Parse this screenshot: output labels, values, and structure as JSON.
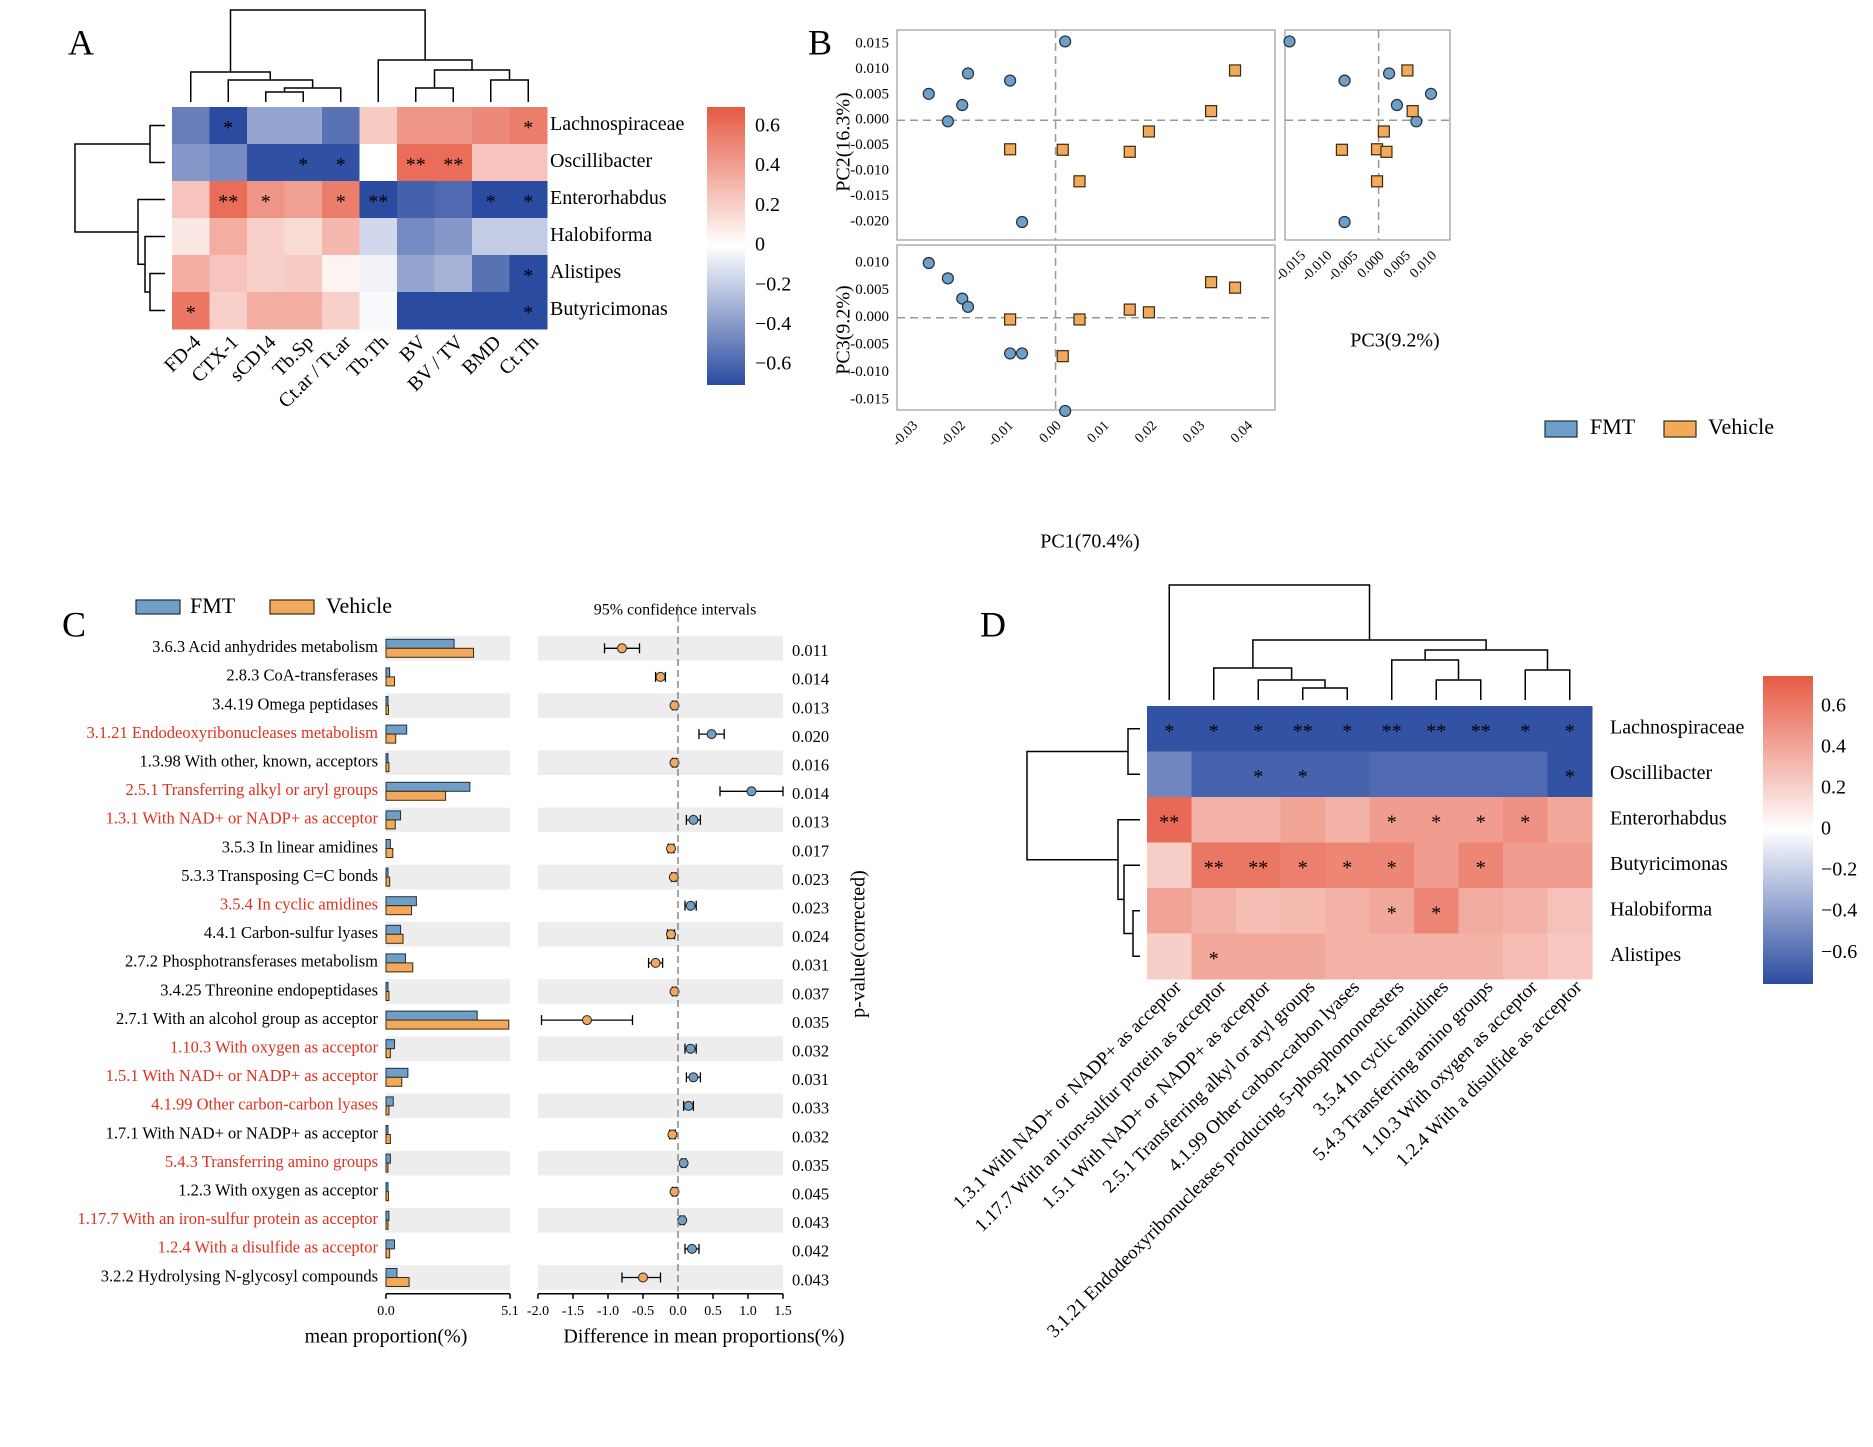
{
  "colors": {
    "fmt": "#6f9fc6",
    "vehicle": "#f2a95c",
    "highlight": "#e0301e",
    "cmap_low": "#2a4ba0",
    "cmap_mid": "#ffffff",
    "cmap_high": "#e65a43"
  },
  "chart_data": [
    {
      "panel": "A",
      "type": "heatmap",
      "label": "A",
      "columns": [
        "FD-4",
        "CTX-1",
        "sCD14",
        "Tb.Sp",
        "Ct.ar / Tt.ar",
        "Tb.Th",
        "BV",
        "BV / TV",
        "BMD",
        "Ct.Th"
      ],
      "rows": [
        "Lachnospiraceae",
        "Oscillibacter",
        "Enterorhabdus",
        "Halobiforma",
        "Alistipes",
        "Butyricimonas"
      ],
      "values": [
        [
          -0.5,
          -0.72,
          -0.35,
          -0.35,
          -0.55,
          0.22,
          0.45,
          0.45,
          0.5,
          0.55
        ],
        [
          -0.4,
          -0.45,
          -0.68,
          -0.68,
          -0.68,
          0.0,
          0.62,
          0.62,
          0.25,
          0.25
        ],
        [
          0.25,
          0.62,
          0.45,
          0.4,
          0.55,
          -0.72,
          -0.62,
          -0.58,
          -0.72,
          -0.72
        ],
        [
          0.1,
          0.35,
          0.2,
          0.15,
          0.3,
          -0.15,
          -0.45,
          -0.4,
          -0.2,
          -0.2
        ],
        [
          0.35,
          0.25,
          0.2,
          0.22,
          0.05,
          -0.05,
          -0.35,
          -0.3,
          -0.55,
          -0.72
        ],
        [
          0.58,
          0.2,
          0.35,
          0.35,
          0.2,
          -0.02,
          -0.7,
          -0.7,
          -0.7,
          -0.72
        ]
      ],
      "stars": [
        [
          "",
          "*",
          "",
          "",
          "",
          "",
          "",
          "",
          "",
          "*"
        ],
        [
          "",
          "",
          "",
          "*",
          "*",
          "",
          "**",
          "**",
          "",
          ""
        ],
        [
          "",
          "**",
          "*",
          "",
          "*",
          "**",
          "",
          "",
          "*",
          "*"
        ],
        [
          "",
          "",
          "",
          "",
          "",
          "",
          "",
          "",
          "",
          ""
        ],
        [
          "",
          "",
          "",
          "",
          "",
          "",
          "",
          "",
          "",
          "*"
        ],
        [
          "*",
          "",
          "",
          "",
          "",
          "",
          "",
          "",
          "",
          "*"
        ]
      ],
      "colorbar": {
        "range": [
          -0.7,
          0.7
        ],
        "ticks": [
          "0.6",
          "0.4",
          "0.2",
          "0",
          "−0.2",
          "−0.4",
          "−0.6"
        ],
        "tick_values": [
          0.6,
          0.4,
          0.2,
          0,
          -0.2,
          -0.4,
          -0.6
        ]
      }
    },
    {
      "panel": "B",
      "type": "scatter",
      "label": "B",
      "legend": [
        "FMT",
        "Vehicle"
      ],
      "xlabel_main": "PC1(70.4%)",
      "ylabel_top": "PC2(16.3%)",
      "ylabel_bottom": "PC3(9.2%)",
      "xlabel_side": "PC3(9.2%)",
      "pc1_ticks": [
        "-0.03",
        "-0.02",
        "-0.01",
        "0.00",
        "0.01",
        "0.02",
        "0.03",
        "0.04"
      ],
      "pc1_tick_values": [
        -0.03,
        -0.02,
        -0.01,
        0,
        0.01,
        0.02,
        0.03,
        0.04
      ],
      "pc2_ticks": [
        "0.015",
        "0.010",
        "0.005",
        "0.000",
        "-0.005",
        "-0.010",
        "-0.015",
        "-0.020"
      ],
      "pc2_tick_values": [
        0.015,
        0.01,
        0.005,
        0,
        -0.005,
        -0.01,
        -0.015,
        -0.02
      ],
      "pc3_ticks": [
        "0.010",
        "0.005",
        "0.000",
        "-0.005",
        "-0.010",
        "-0.015"
      ],
      "pc3_tick_values": [
        0.01,
        0.005,
        0,
        -0.005,
        -0.01,
        -0.015
      ],
      "side_ticks": [
        "-0.015",
        "-0.010",
        "-0.005",
        "0.000",
        "0.005",
        "0.010"
      ],
      "side_tick_values": [
        -0.015,
        -0.01,
        -0.005,
        0,
        0.005,
        0.01
      ],
      "FMT": [
        {
          "pc1": -0.0265,
          "pc2": 0.0052,
          "pc3": 0.01
        },
        {
          "pc1": -0.0225,
          "pc2": -0.0002,
          "pc3": 0.0072
        },
        {
          "pc1": -0.0195,
          "pc2": 0.003,
          "pc3": 0.0035
        },
        {
          "pc1": -0.0183,
          "pc2": 0.0092,
          "pc3": 0.002
        },
        {
          "pc1": -0.0095,
          "pc2": 0.0078,
          "pc3": -0.0065
        },
        {
          "pc1": -0.007,
          "pc2": -0.02,
          "pc3": -0.0065
        },
        {
          "pc1": 0.002,
          "pc2": 0.0155,
          "pc3": -0.017
        }
      ],
      "Vehicle": [
        {
          "pc1": -0.0095,
          "pc2": -0.0057,
          "pc3": -0.0003
        },
        {
          "pc1": 0.0015,
          "pc2": -0.0058,
          "pc3": -0.007
        },
        {
          "pc1": 0.005,
          "pc2": -0.012,
          "pc3": -0.0003
        },
        {
          "pc1": 0.0155,
          "pc2": -0.0062,
          "pc3": 0.0015
        },
        {
          "pc1": 0.0195,
          "pc2": -0.0022,
          "pc3": 0.001
        },
        {
          "pc1": 0.0325,
          "pc2": 0.0018,
          "pc3": 0.0065
        },
        {
          "pc1": 0.0375,
          "pc2": 0.0098,
          "pc3": 0.0055
        }
      ]
    },
    {
      "panel": "C",
      "type": "bar",
      "label": "C",
      "legend": [
        "FMT",
        "Vehicle"
      ],
      "ci_title": "95% confidence intervals",
      "xlabel_left": "mean proportion(%)",
      "xlabel_right": "Difference in mean proportions(%)",
      "ylabel_right": "p-value(corrected)",
      "left_ticks": [
        "0.0",
        "5.1"
      ],
      "left_tick_values": [
        0,
        5.1
      ],
      "right_ticks": [
        "-2.0",
        "-1.5",
        "-1.0",
        "-0.5",
        "0.0",
        "0.5",
        "1.0",
        "1.5"
      ],
      "right_tick_values": [
        -2.0,
        -1.5,
        -1.0,
        -0.5,
        0.0,
        0.5,
        1.0,
        1.5
      ],
      "rows": [
        {
          "label": "3.6.3 Acid anhydrides metabolism",
          "red": false,
          "fmt": 2.8,
          "vehicle": 3.6,
          "diff": -0.8,
          "lo": -1.05,
          "hi": -0.55,
          "p": "0.011"
        },
        {
          "label": "2.8.3 CoA-transferases",
          "red": false,
          "fmt": 0.15,
          "vehicle": 0.35,
          "diff": -0.25,
          "lo": -0.32,
          "hi": -0.18,
          "p": "0.014"
        },
        {
          "label": "3.4.19 Omega peptidases",
          "red": false,
          "fmt": 0.05,
          "vehicle": 0.1,
          "diff": -0.05,
          "lo": -0.08,
          "hi": -0.02,
          "p": "0.013"
        },
        {
          "label": "3.1.21 Endodeoxyribonucleases metabolism",
          "red": true,
          "fmt": 0.85,
          "vehicle": 0.4,
          "diff": 0.48,
          "lo": 0.3,
          "hi": 0.66,
          "p": "0.020"
        },
        {
          "label": "1.3.98 With other, known, acceptors",
          "red": false,
          "fmt": 0.05,
          "vehicle": 0.12,
          "diff": -0.05,
          "lo": -0.08,
          "hi": -0.02,
          "p": "0.016"
        },
        {
          "label": "2.5.1 Transferring alkyl or aryl groups",
          "red": true,
          "fmt": 3.45,
          "vehicle": 2.45,
          "diff": 1.05,
          "lo": 0.6,
          "hi": 1.5,
          "p": "0.014"
        },
        {
          "label": "1.3.1 With NAD+ or NADP+ as acceptor",
          "red": true,
          "fmt": 0.6,
          "vehicle": 0.38,
          "diff": 0.22,
          "lo": 0.12,
          "hi": 0.32,
          "p": "0.013"
        },
        {
          "label": "3.5.3 In linear amidines",
          "red": false,
          "fmt": 0.18,
          "vehicle": 0.28,
          "diff": -0.1,
          "lo": -0.14,
          "hi": -0.06,
          "p": "0.017"
        },
        {
          "label": "5.3.3 Transposing C=C bonds",
          "red": false,
          "fmt": 0.08,
          "vehicle": 0.15,
          "diff": -0.06,
          "lo": -0.09,
          "hi": -0.03,
          "p": "0.023"
        },
        {
          "label": "3.5.4 In cyclic amidines",
          "red": true,
          "fmt": 1.25,
          "vehicle": 1.05,
          "diff": 0.18,
          "lo": 0.1,
          "hi": 0.26,
          "p": "0.023"
        },
        {
          "label": "4.4.1 Carbon-sulfur lyases",
          "red": false,
          "fmt": 0.6,
          "vehicle": 0.7,
          "diff": -0.1,
          "lo": -0.15,
          "hi": -0.05,
          "p": "0.024"
        },
        {
          "label": "2.7.2 Phosphotransferases metabolism",
          "red": false,
          "fmt": 0.8,
          "vehicle": 1.1,
          "diff": -0.32,
          "lo": -0.42,
          "hi": -0.22,
          "p": "0.031"
        },
        {
          "label": "3.4.25 Threonine endopeptidases",
          "red": false,
          "fmt": 0.05,
          "vehicle": 0.12,
          "diff": -0.05,
          "lo": -0.08,
          "hi": -0.02,
          "p": "0.037"
        },
        {
          "label": "2.7.1 With an alcohol group as acceptor",
          "red": false,
          "fmt": 3.75,
          "vehicle": 5.05,
          "diff": -1.3,
          "lo": -1.95,
          "hi": -0.65,
          "p": "0.035"
        },
        {
          "label": "1.10.3 With oxygen as acceptor",
          "red": true,
          "fmt": 0.35,
          "vehicle": 0.18,
          "diff": 0.18,
          "lo": 0.1,
          "hi": 0.26,
          "p": "0.032"
        },
        {
          "label": "1.5.1 With NAD+ or NADP+ as acceptor",
          "red": true,
          "fmt": 0.9,
          "vehicle": 0.65,
          "diff": 0.22,
          "lo": 0.12,
          "hi": 0.32,
          "p": "0.031"
        },
        {
          "label": "4.1.99 Other carbon-carbon lyases",
          "red": true,
          "fmt": 0.3,
          "vehicle": 0.12,
          "diff": 0.15,
          "lo": 0.08,
          "hi": 0.22,
          "p": "0.033"
        },
        {
          "label": "1.7.1 With NAD+ or NADP+ as acceptor",
          "red": false,
          "fmt": 0.08,
          "vehicle": 0.18,
          "diff": -0.08,
          "lo": -0.12,
          "hi": -0.04,
          "p": "0.032"
        },
        {
          "label": "5.4.3 Transferring amino groups",
          "red": true,
          "fmt": 0.18,
          "vehicle": 0.08,
          "diff": 0.08,
          "lo": 0.05,
          "hi": 0.11,
          "p": "0.035"
        },
        {
          "label": "1.2.3 With oxygen as acceptor",
          "red": false,
          "fmt": 0.05,
          "vehicle": 0.1,
          "diff": -0.05,
          "lo": -0.08,
          "hi": -0.02,
          "p": "0.045"
        },
        {
          "label": "1.17.7 With an iron-sulfur protein as acceptor",
          "red": true,
          "fmt": 0.12,
          "vehicle": 0.06,
          "diff": 0.06,
          "lo": 0.03,
          "hi": 0.09,
          "p": "0.043"
        },
        {
          "label": "1.2.4 With a disulfide as acceptor",
          "red": true,
          "fmt": 0.35,
          "vehicle": 0.15,
          "diff": 0.2,
          "lo": 0.1,
          "hi": 0.3,
          "p": "0.042"
        },
        {
          "label": "3.2.2 Hydrolysing N-glycosyl compounds",
          "red": false,
          "fmt": 0.45,
          "vehicle": 0.95,
          "diff": -0.5,
          "lo": -0.8,
          "hi": -0.25,
          "p": "0.043"
        }
      ]
    },
    {
      "panel": "D",
      "type": "heatmap",
      "label": "D",
      "columns": [
        "1.3.1 With NAD+ or NADP+ as acceptor",
        "1.17.7 With an iron-sulfur protein as acceptor",
        "1.5.1 With NAD+ or NADP+ as acceptor",
        "2.5.1 Transferring alkyl or aryl groups",
        "4.1.99 Other carbon-carbon lyases",
        "3.1.21 Endodeoxyribonucleases producing 5-phosphomonoesters",
        "3.5.4 In cyclic amidines",
        "5.4.3 Transferring amino groups",
        "1.10.3 With oxygen as acceptor",
        "1.2.4 With a disulfide as acceptor"
      ],
      "rows": [
        "Lachnospiraceae",
        "Oscillibacter",
        "Enterorhabdus",
        "Butyricimonas",
        "Halobiforma",
        "Alistipes"
      ],
      "values": [
        [
          -0.72,
          -0.72,
          -0.72,
          -0.72,
          -0.72,
          -0.72,
          -0.72,
          -0.72,
          -0.72,
          -0.72
        ],
        [
          -0.5,
          -0.65,
          -0.65,
          -0.65,
          -0.65,
          -0.62,
          -0.62,
          -0.62,
          -0.62,
          -0.72
        ],
        [
          0.68,
          0.35,
          0.35,
          0.42,
          0.35,
          0.45,
          0.45,
          0.45,
          0.5,
          0.4
        ],
        [
          0.22,
          0.62,
          0.62,
          0.58,
          0.55,
          0.55,
          0.45,
          0.55,
          0.45,
          0.45
        ],
        [
          0.42,
          0.35,
          0.3,
          0.32,
          0.35,
          0.4,
          0.55,
          0.38,
          0.35,
          0.28
        ],
        [
          0.22,
          0.4,
          0.4,
          0.4,
          0.35,
          0.35,
          0.35,
          0.35,
          0.3,
          0.25
        ]
      ],
      "stars": [
        [
          "*",
          "*",
          "*",
          "**",
          "*",
          "**",
          "**",
          "**",
          "*",
          "*"
        ],
        [
          "",
          "",
          "*",
          "*",
          "",
          "",
          "",
          "",
          "",
          "*"
        ],
        [
          "**",
          "",
          "",
          "",
          "",
          "*",
          "*",
          "*",
          "*",
          ""
        ],
        [
          "",
          "**",
          "**",
          "*",
          "*",
          "*",
          "",
          "*",
          "",
          ""
        ],
        [
          "",
          "",
          "",
          "",
          "",
          "*",
          "*",
          "",
          "",
          ""
        ],
        [
          "",
          "*",
          "",
          "",
          "",
          "",
          "",
          "",
          "",
          ""
        ]
      ],
      "colorbar": {
        "range": [
          -0.75,
          0.75
        ],
        "ticks": [
          "0.6",
          "0.4",
          "0.2",
          "0",
          "−0.2",
          "−0.4",
          "−0.6"
        ],
        "tick_values": [
          0.6,
          0.4,
          0.2,
          0,
          -0.2,
          -0.4,
          -0.6
        ]
      }
    }
  ]
}
